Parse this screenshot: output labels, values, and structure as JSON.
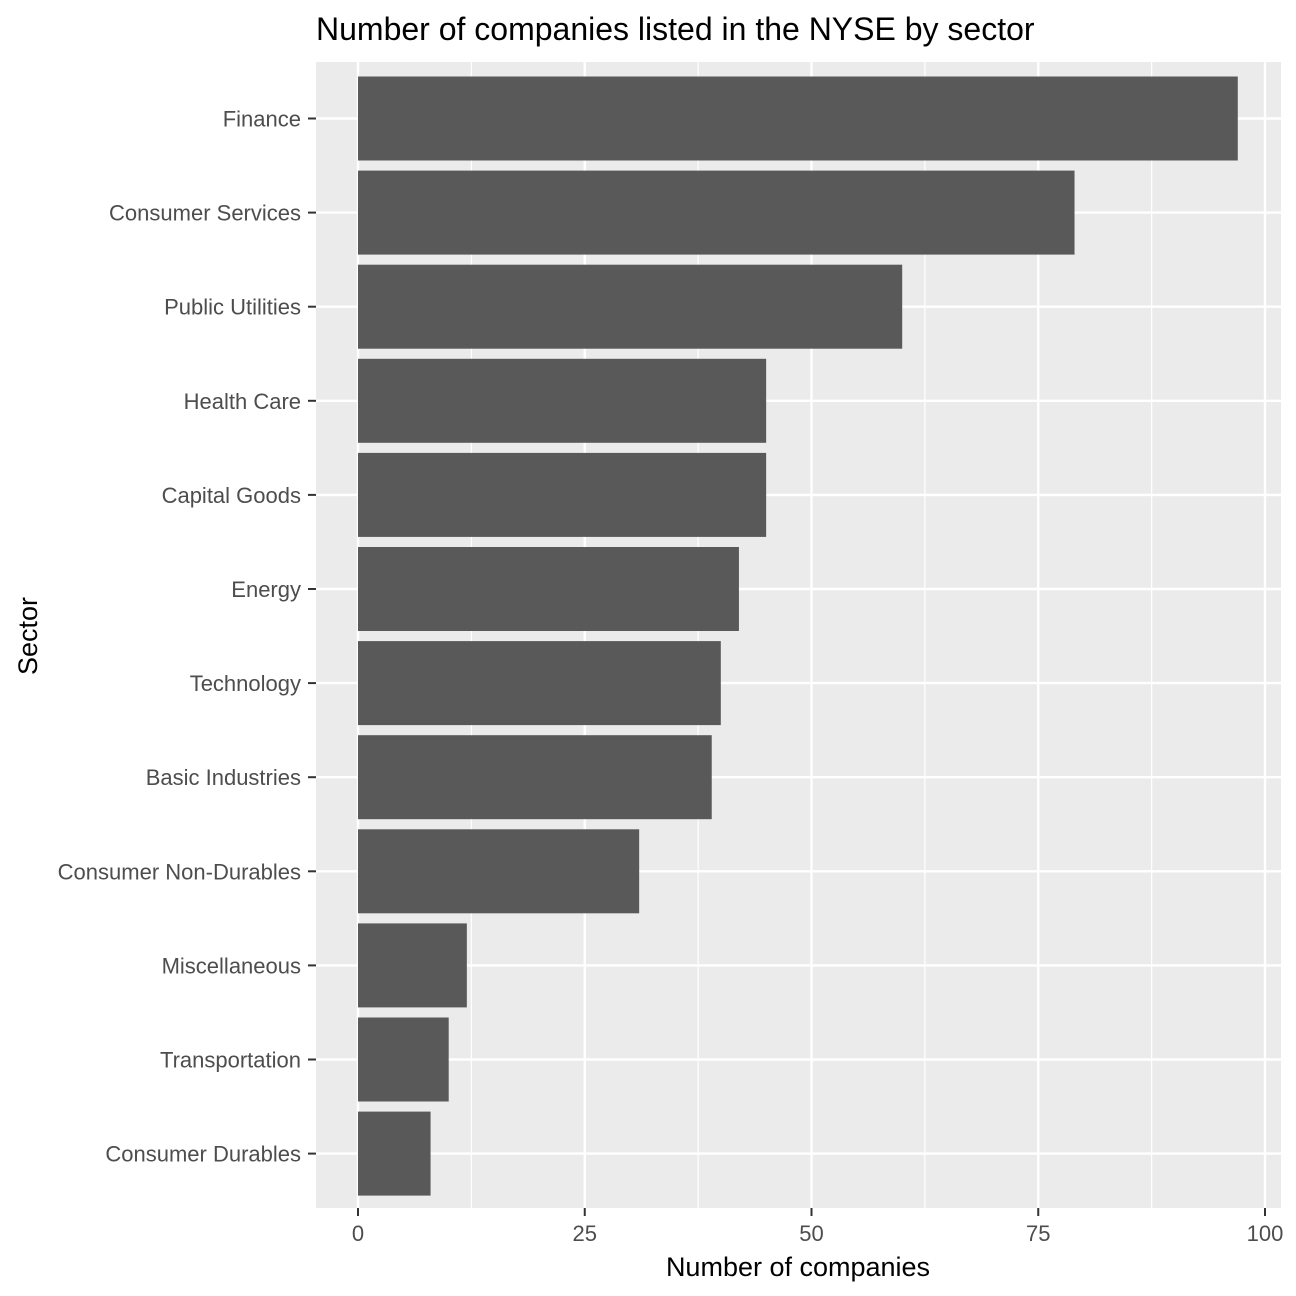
{
  "chart_data": {
    "type": "bar",
    "orientation": "horizontal",
    "title": "Number of companies listed in the NYSE by sector",
    "xlabel": "Number of companies",
    "ylabel": "Sector",
    "categories": [
      "Finance",
      "Consumer Services",
      "Public Utilities",
      "Health Care",
      "Capital Goods",
      "Energy",
      "Technology",
      "Basic Industries",
      "Consumer Non-Durables",
      "Miscellaneous",
      "Transportation",
      "Consumer Durables"
    ],
    "values": [
      97,
      79,
      60,
      45,
      45,
      42,
      40,
      39,
      31,
      12,
      10,
      8
    ],
    "xlim": [
      0,
      100
    ],
    "xticks": [
      0,
      25,
      50,
      75,
      100
    ],
    "grid": true,
    "legend": "none",
    "colors": {
      "bar": "#595959",
      "panel": "#ebebeb",
      "grid": "#ffffff",
      "tick_text": "#4d4d4d",
      "tick_mark": "#333333"
    }
  }
}
